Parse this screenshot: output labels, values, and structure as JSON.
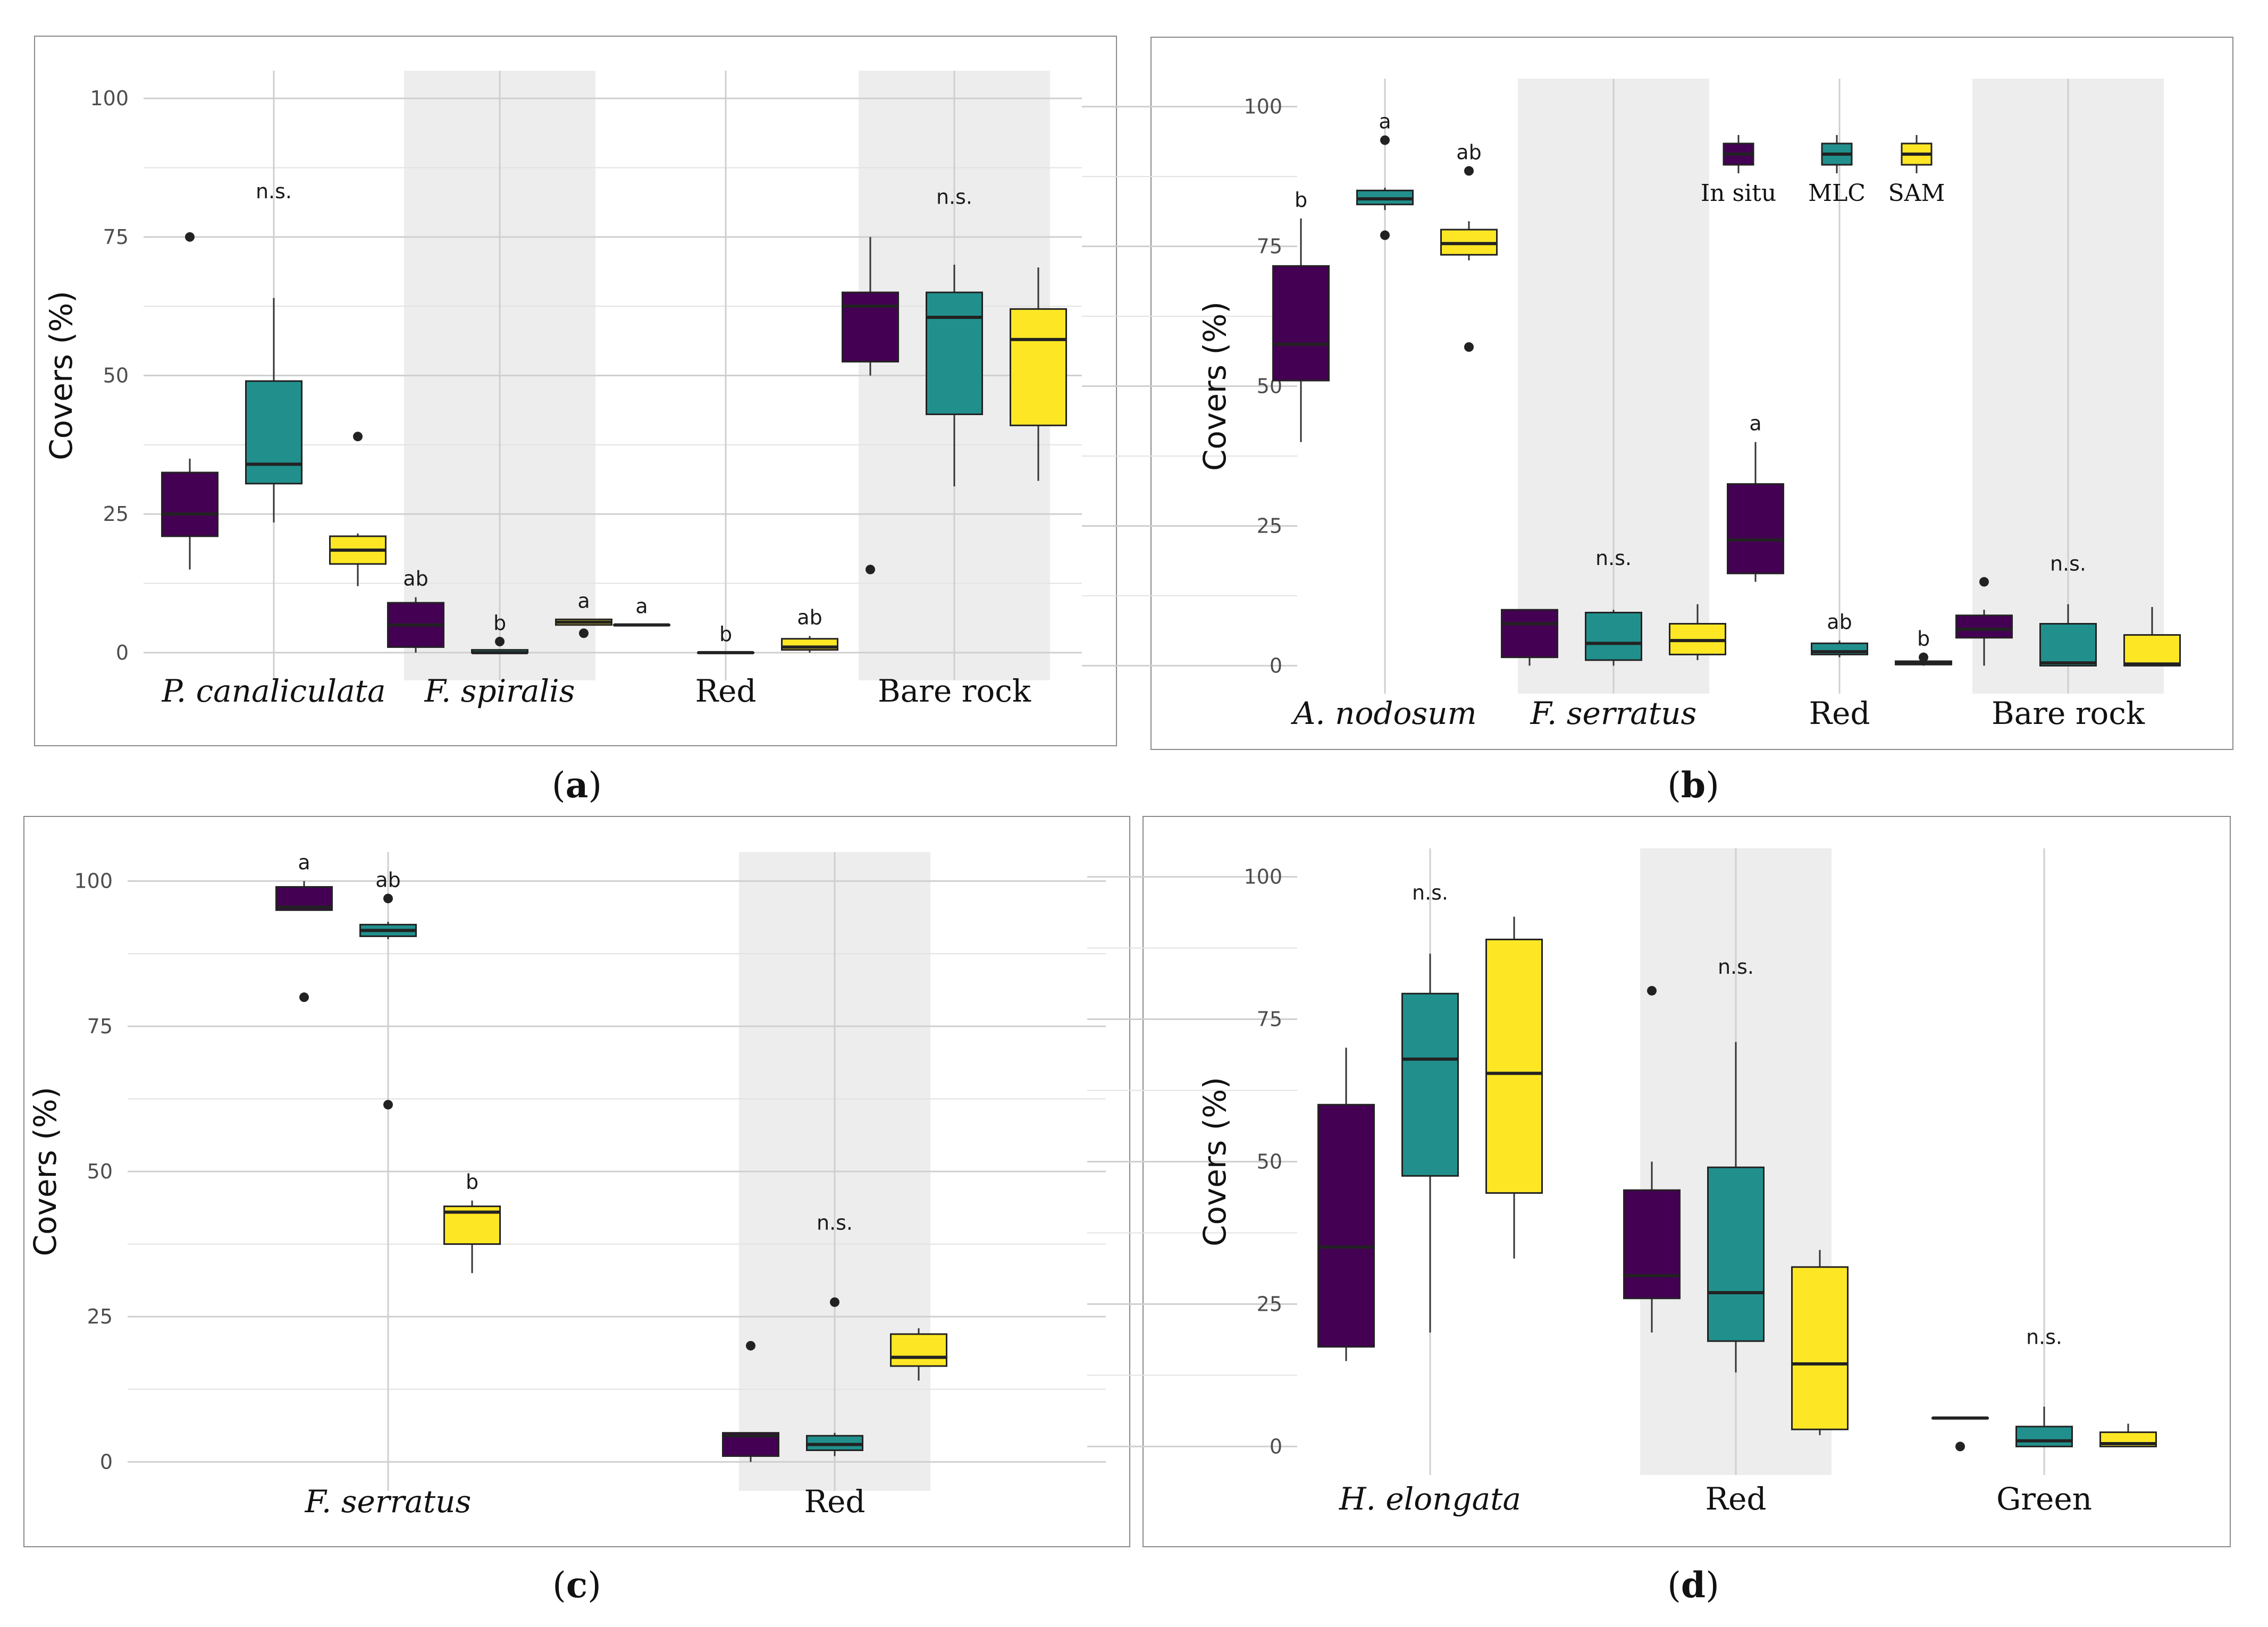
{
  "colors": {
    "In situ": "#440154",
    "MLC": "#21908d",
    "SAM": "#fde725"
  },
  "chart_data": [
    {
      "type": "box",
      "panel": "a",
      "caption": "(a)",
      "ylabel": "Covers (%)",
      "ylim": [
        -5,
        105
      ],
      "yticks": [
        0,
        25,
        50,
        75,
        100
      ],
      "series_order": [
        "In situ",
        "MLC",
        "SAM"
      ],
      "categories": [
        {
          "label": "P. canaliculata",
          "italic": true,
          "shaded": false,
          "sig": "n.s.",
          "sig_y": 82,
          "boxes": [
            {
              "series": "In situ",
              "lo": 15,
              "q1": 21,
              "med": 25,
              "q3": 32.5,
              "hi": 35,
              "outliers": [
                75
              ],
              "letter": ""
            },
            {
              "series": "MLC",
              "lo": 23.5,
              "q1": 30.5,
              "med": 34,
              "q3": 49,
              "hi": 64,
              "outliers": [],
              "letter": ""
            },
            {
              "series": "SAM",
              "lo": 12,
              "q1": 16,
              "med": 18.5,
              "q3": 21,
              "hi": 21.5,
              "outliers": [
                39
              ],
              "letter": ""
            }
          ]
        },
        {
          "label": "F. spiralis",
          "italic": true,
          "shaded": true,
          "sig": "",
          "sig_y": 0,
          "boxes": [
            {
              "series": "In situ",
              "lo": 0,
              "q1": 1,
              "med": 5,
              "q3": 9,
              "hi": 10,
              "outliers": [],
              "letter": "ab"
            },
            {
              "series": "MLC",
              "lo": 0,
              "q1": 0,
              "med": 0,
              "q3": 0.5,
              "hi": 0.5,
              "outliers": [
                2
              ],
              "letter": "b"
            },
            {
              "series": "SAM",
              "lo": 5,
              "q1": 5,
              "med": 5.5,
              "q3": 6,
              "hi": 6,
              "outliers": [
                3.5
              ],
              "letter": "a"
            }
          ]
        },
        {
          "label": "Red",
          "italic": false,
          "shaded": false,
          "sig": "",
          "sig_y": 0,
          "boxes": [
            {
              "series": "In situ",
              "lo": 5,
              "q1": 5,
              "med": 5,
              "q3": 5,
              "hi": 5,
              "outliers": [],
              "letter": "a"
            },
            {
              "series": "MLC",
              "lo": 0,
              "q1": 0,
              "med": 0,
              "q3": 0,
              "hi": 0,
              "outliers": [],
              "letter": "b"
            },
            {
              "series": "SAM",
              "lo": 0,
              "q1": 0.5,
              "med": 1,
              "q3": 2.5,
              "hi": 3,
              "outliers": [],
              "letter": "ab"
            }
          ]
        },
        {
          "label": "Bare rock",
          "italic": false,
          "shaded": true,
          "sig": "n.s.",
          "sig_y": 81,
          "boxes": [
            {
              "series": "In situ",
              "lo": 50,
              "q1": 52.5,
              "med": 62.5,
              "q3": 65,
              "hi": 75,
              "outliers": [
                15
              ],
              "letter": ""
            },
            {
              "series": "MLC",
              "lo": 30,
              "q1": 43,
              "med": 60.5,
              "q3": 65,
              "hi": 70,
              "outliers": [],
              "letter": ""
            },
            {
              "series": "SAM",
              "lo": 31,
              "q1": 41,
              "med": 56.5,
              "q3": 62,
              "hi": 69.5,
              "outliers": [],
              "letter": ""
            }
          ]
        }
      ]
    },
    {
      "type": "box",
      "panel": "b",
      "caption": "(b)",
      "ylabel": "Covers (%)",
      "ylim": [
        -5,
        105
      ],
      "yticks": [
        0,
        25,
        50,
        75,
        100
      ],
      "series_order": [
        "In situ",
        "MLC",
        "SAM"
      ],
      "legend": {
        "position": "top-right",
        "entries": [
          "In situ",
          "MLC",
          "SAM"
        ]
      },
      "categories": [
        {
          "label": "A. nodosum",
          "italic": true,
          "shaded": false,
          "sig": "",
          "sig_y": 0,
          "boxes": [
            {
              "series": "In situ",
              "lo": 40,
              "q1": 51,
              "med": 57.5,
              "q3": 71.5,
              "hi": 80,
              "outliers": [],
              "letter": "b"
            },
            {
              "series": "MLC",
              "lo": 81.5,
              "q1": 82.5,
              "med": 83.5,
              "q3": 85,
              "hi": 85.5,
              "outliers": [
                77,
                94
              ],
              "letter": "a"
            },
            {
              "series": "SAM",
              "lo": 72.5,
              "q1": 73.5,
              "med": 75.5,
              "q3": 78,
              "hi": 79.5,
              "outliers": [
                57,
                88.5
              ],
              "letter": "ab"
            }
          ]
        },
        {
          "label": "F. serratus",
          "italic": true,
          "shaded": true,
          "sig": "n.s.",
          "sig_y": 18,
          "boxes": [
            {
              "series": "In situ",
              "lo": 0,
              "q1": 1.5,
              "med": 7.5,
              "q3": 10,
              "hi": 10,
              "outliers": [],
              "letter": ""
            },
            {
              "series": "MLC",
              "lo": 0,
              "q1": 1,
              "med": 4,
              "q3": 9.5,
              "hi": 10,
              "outliers": [],
              "letter": ""
            },
            {
              "series": "SAM",
              "lo": 1,
              "q1": 2,
              "med": 4.5,
              "q3": 7.5,
              "hi": 11,
              "outliers": [],
              "letter": ""
            }
          ]
        },
        {
          "label": "Red",
          "italic": false,
          "shaded": false,
          "sig": "",
          "sig_y": 0,
          "boxes": [
            {
              "series": "In situ",
              "lo": 15,
              "q1": 16.5,
              "med": 22.5,
              "q3": 32.5,
              "hi": 40,
              "outliers": [],
              "letter": "a"
            },
            {
              "series": "MLC",
              "lo": 1.5,
              "q1": 2,
              "med": 2.5,
              "q3": 4,
              "hi": 4.5,
              "outliers": [],
              "letter": "ab"
            },
            {
              "series": "SAM",
              "lo": 0,
              "q1": 0.2,
              "med": 0.5,
              "q3": 0.8,
              "hi": 1,
              "outliers": [
                1.5
              ],
              "letter": "b"
            }
          ]
        },
        {
          "label": "Bare rock",
          "italic": false,
          "shaded": true,
          "sig": "n.s.",
          "sig_y": 17,
          "boxes": [
            {
              "series": "In situ",
              "lo": 0,
              "q1": 5,
              "med": 6.5,
              "q3": 9,
              "hi": 10,
              "outliers": [
                15
              ],
              "letter": ""
            },
            {
              "series": "MLC",
              "lo": 0,
              "q1": 0,
              "med": 0.5,
              "q3": 7.5,
              "hi": 11,
              "outliers": [],
              "letter": ""
            },
            {
              "series": "SAM",
              "lo": 0,
              "q1": 0,
              "med": 0.3,
              "q3": 5.5,
              "hi": 10.5,
              "outliers": [],
              "letter": ""
            }
          ]
        }
      ]
    },
    {
      "type": "box",
      "panel": "c",
      "caption": "(c)",
      "ylabel": "Covers (%)",
      "ylim": [
        -5,
        105
      ],
      "yticks": [
        0,
        25,
        50,
        75,
        100
      ],
      "series_order": [
        "In situ",
        "MLC",
        "SAM"
      ],
      "categories": [
        {
          "label": "F. serratus",
          "italic": true,
          "shaded": false,
          "sig": "",
          "sig_y": 0,
          "boxes": [
            {
              "series": "In situ",
              "lo": 95,
              "q1": 95,
              "med": 95.5,
              "q3": 99,
              "hi": 100,
              "outliers": [
                80
              ],
              "letter": "a"
            },
            {
              "series": "MLC",
              "lo": 90,
              "q1": 90.5,
              "med": 91.5,
              "q3": 92.5,
              "hi": 93,
              "outliers": [
                97,
                61.5
              ],
              "letter": "ab"
            },
            {
              "series": "SAM",
              "lo": 32.5,
              "q1": 37.5,
              "med": 43,
              "q3": 44,
              "hi": 45,
              "outliers": [],
              "letter": "b"
            }
          ]
        },
        {
          "label": "Red",
          "italic": false,
          "shaded": true,
          "sig": "n.s.",
          "sig_y": 40,
          "boxes": [
            {
              "series": "In situ",
              "lo": 0,
              "q1": 1,
              "med": 4.5,
              "q3": 5,
              "hi": 5,
              "outliers": [
                20
              ],
              "letter": ""
            },
            {
              "series": "MLC",
              "lo": 1,
              "q1": 2,
              "med": 3,
              "q3": 4.5,
              "hi": 5,
              "outliers": [
                27.5
              ],
              "letter": ""
            },
            {
              "series": "SAM",
              "lo": 14,
              "q1": 16.5,
              "med": 18,
              "q3": 22,
              "hi": 23,
              "outliers": [],
              "letter": ""
            }
          ]
        }
      ]
    },
    {
      "type": "box",
      "panel": "d",
      "caption": "(d)",
      "ylabel": "Covers (%)",
      "ylim": [
        -5,
        105
      ],
      "yticks": [
        0,
        25,
        50,
        75,
        100
      ],
      "series_order": [
        "In situ",
        "MLC",
        "SAM"
      ],
      "categories": [
        {
          "label": "H. elongata",
          "italic": true,
          "shaded": false,
          "sig": "n.s.",
          "sig_y": 96,
          "boxes": [
            {
              "series": "In situ",
              "lo": 15,
              "q1": 17.5,
              "med": 35,
              "q3": 60,
              "hi": 70,
              "outliers": [],
              "letter": ""
            },
            {
              "series": "MLC",
              "lo": 20,
              "q1": 47.5,
              "med": 68,
              "q3": 79.5,
              "hi": 86.5,
              "outliers": [],
              "letter": ""
            },
            {
              "series": "SAM",
              "lo": 33,
              "q1": 44.5,
              "med": 65.5,
              "q3": 89,
              "hi": 93,
              "outliers": [],
              "letter": ""
            }
          ]
        },
        {
          "label": "Red",
          "italic": false,
          "shaded": true,
          "sig": "n.s.",
          "sig_y": 83,
          "boxes": [
            {
              "series": "In situ",
              "lo": 20,
              "q1": 26,
              "med": 30,
              "q3": 45,
              "hi": 50,
              "outliers": [
                80
              ],
              "letter": ""
            },
            {
              "series": "MLC",
              "lo": 13,
              "q1": 18.5,
              "med": 27,
              "q3": 49,
              "hi": 71,
              "outliers": [],
              "letter": ""
            },
            {
              "series": "SAM",
              "lo": 2,
              "q1": 3,
              "med": 14.5,
              "q3": 31.5,
              "hi": 34.5,
              "outliers": [],
              "letter": ""
            }
          ]
        },
        {
          "label": "Green",
          "italic": false,
          "shaded": false,
          "sig": "n.s.",
          "sig_y": 18,
          "boxes": [
            {
              "series": "In situ",
              "lo": 5,
              "q1": 5,
              "med": 5,
              "q3": 5,
              "hi": 5,
              "outliers": [
                0
              ],
              "letter": ""
            },
            {
              "series": "MLC",
              "lo": 0,
              "q1": 0,
              "med": 1,
              "q3": 3.5,
              "hi": 7,
              "outliers": [],
              "letter": ""
            },
            {
              "series": "SAM",
              "lo": 0,
              "q1": 0,
              "med": 0.5,
              "q3": 2.5,
              "hi": 4,
              "outliers": [],
              "letter": ""
            }
          ]
        }
      ]
    }
  ]
}
